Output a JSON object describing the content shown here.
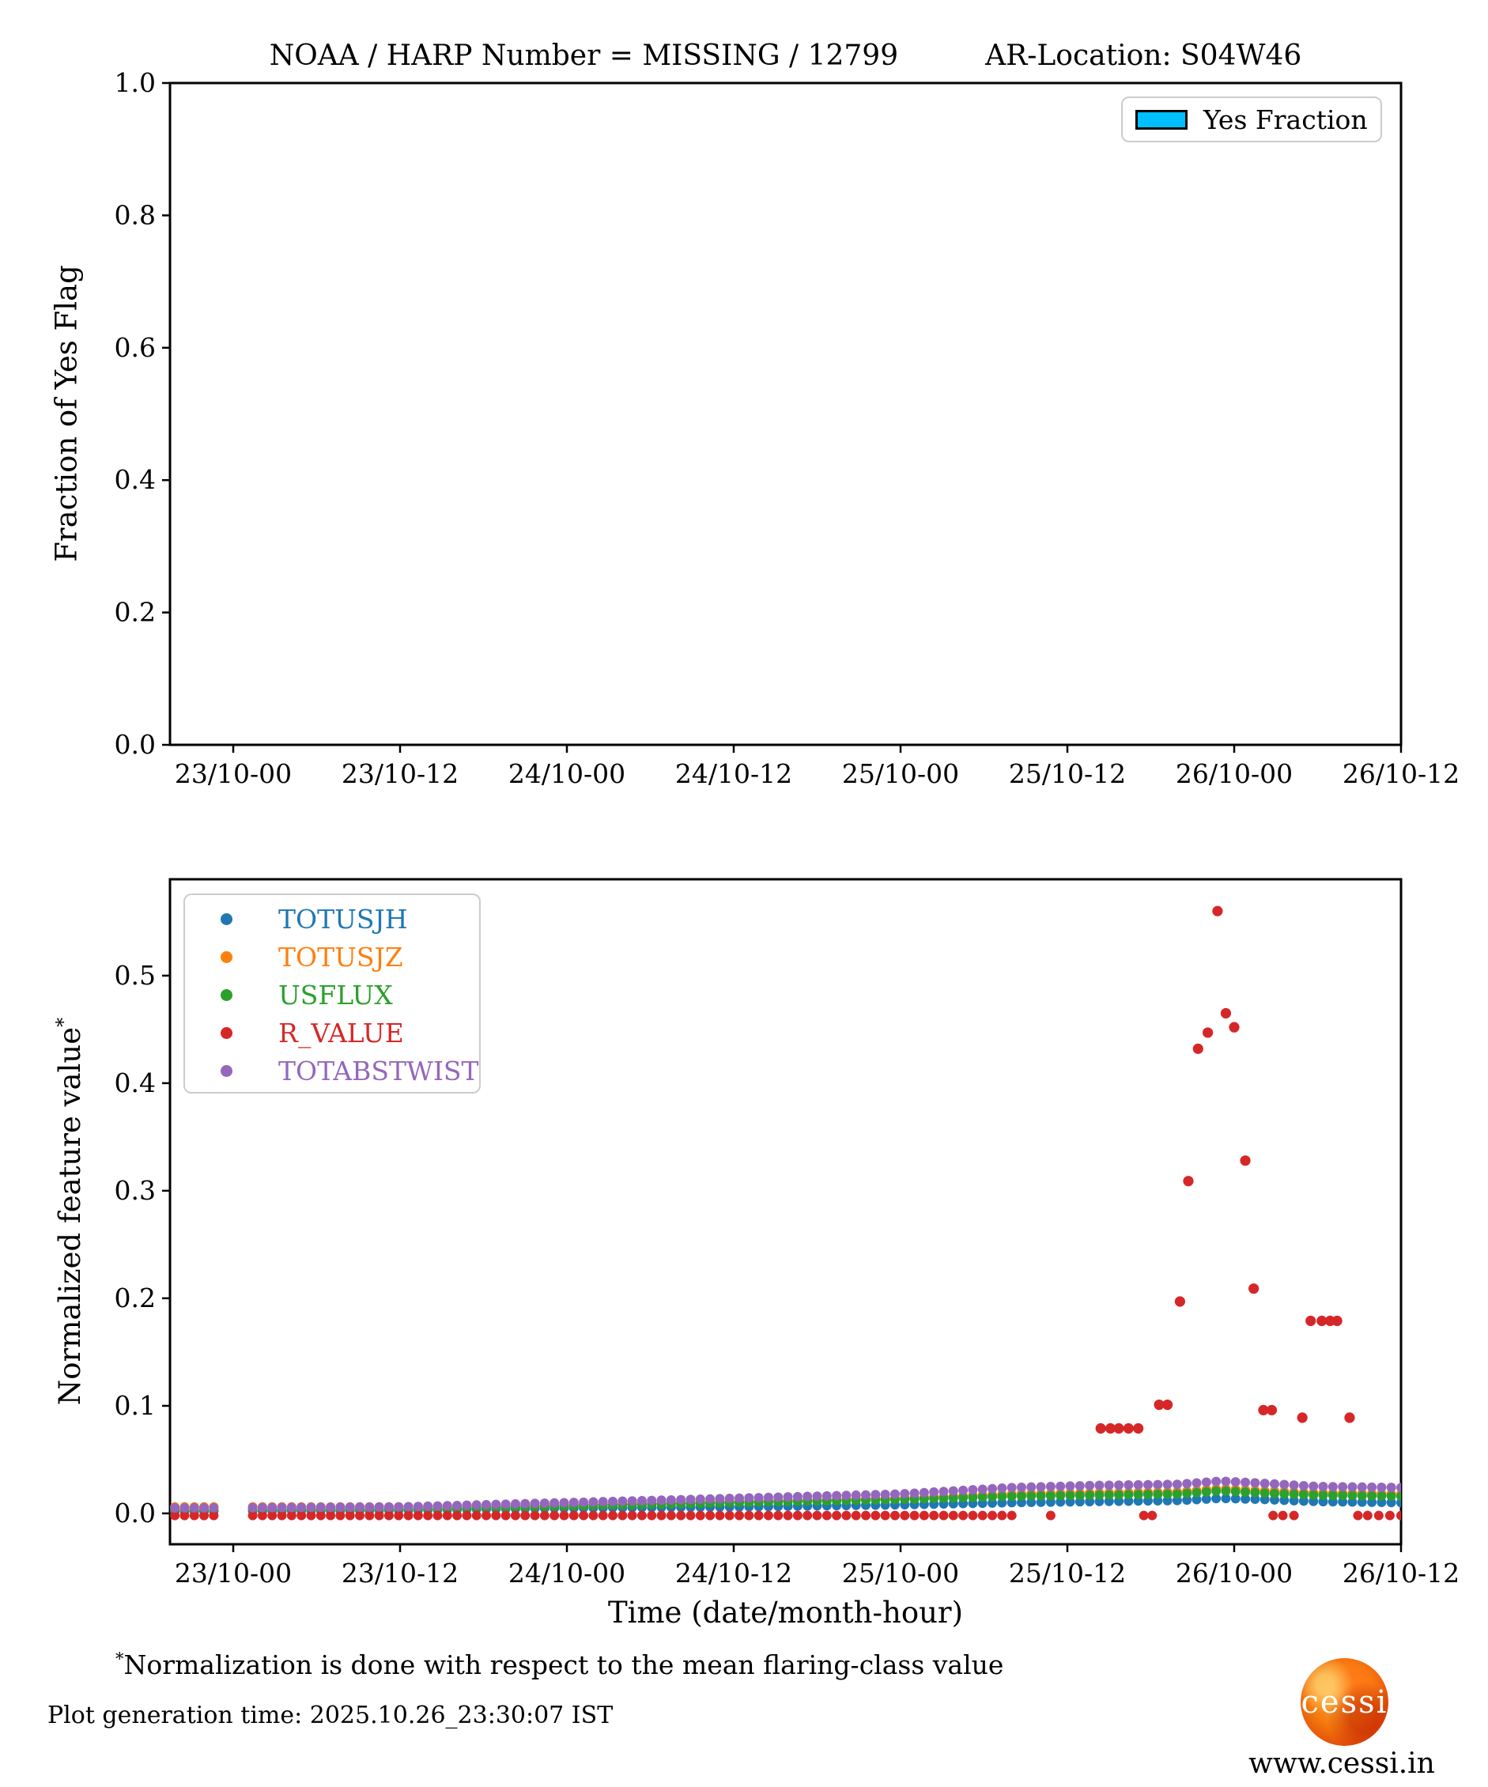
{
  "header": {
    "title_left": "NOAA / HARP Number = MISSING / 12799",
    "title_right": "AR-Location: S04W46"
  },
  "colors": {
    "yes_fraction": "#00BFFF",
    "TOTUSJH": "#1f77b4",
    "TOTUSJZ": "#ff7f0e",
    "USFLUX": "#2ca02c",
    "R_VALUE": "#d62728",
    "TOTABSTWIST": "#9467bd"
  },
  "chart_data": [
    {
      "panel": "top",
      "type": "bar",
      "ylabel": "Fraction of Yes Flag",
      "ylim": [
        0.0,
        1.0
      ],
      "yticks": [
        "0.0",
        "0.2",
        "0.4",
        "0.6",
        "0.8",
        "1.0"
      ],
      "xtick_labels": [
        "23/10-00",
        "23/10-12",
        "24/10-00",
        "24/10-12",
        "25/10-00",
        "25/10-12",
        "26/10-00",
        "26/10-12"
      ],
      "legend": [
        {
          "label": "Yes Fraction",
          "color": "#00BFFF"
        }
      ],
      "categories": [],
      "values": [],
      "grid": false,
      "note": "panel is empty - no yes-fraction bars plotted"
    },
    {
      "panel": "bottom",
      "type": "scatter",
      "xlabel": "Time (date/month-hour)",
      "ylabel": "Normalized feature value",
      "ylabel_sup": "*",
      "ylim": [
        -0.0287,
        0.5896
      ],
      "yticks": [
        "0.0",
        "0.1",
        "0.2",
        "0.3",
        "0.4",
        "0.5"
      ],
      "xtick_labels": [
        "23/10-00",
        "23/10-12",
        "24/10-00",
        "24/10-12",
        "25/10-00",
        "25/10-12",
        "26/10-00",
        "26/10-12"
      ],
      "xtick_hours": [
        0,
        12,
        24,
        36,
        48,
        60,
        72,
        84
      ],
      "xlim_hours": [
        -4.55,
        84.0
      ],
      "sample_times": {
        "start": -4.9,
        "end": 84,
        "step": 0.7,
        "gap_ranges": [
          [
            -0.8,
            1.35
          ]
        ]
      },
      "series": [
        {
          "name": "TOTUSJH",
          "color": "#1f77b4",
          "knots": [
            [
              -4,
              0.002
            ],
            [
              12,
              0.003
            ],
            [
              24,
              0.005
            ],
            [
              36,
              0.006
            ],
            [
              48,
              0.008
            ],
            [
              56,
              0.01
            ],
            [
              62,
              0.011
            ],
            [
              68,
              0.012
            ],
            [
              71,
              0.014
            ],
            [
              74,
              0.013
            ],
            [
              78,
              0.011
            ],
            [
              84,
              0.01
            ]
          ]
        },
        {
          "name": "TOTUSJZ",
          "color": "#ff7f0e",
          "knots": [
            [
              -4,
              0.006
            ],
            [
              12,
              0.006
            ],
            [
              24,
              0.008
            ],
            [
              36,
              0.011
            ],
            [
              48,
              0.014
            ],
            [
              56,
              0.018
            ],
            [
              62,
              0.019
            ],
            [
              68,
              0.02
            ],
            [
              71,
              0.023
            ],
            [
              74,
              0.021
            ],
            [
              78,
              0.019
            ],
            [
              84,
              0.018
            ]
          ]
        },
        {
          "name": "USFLUX",
          "color": "#2ca02c",
          "knots": [
            [
              -4,
              0.003
            ],
            [
              12,
              0.004
            ],
            [
              24,
              0.007
            ],
            [
              36,
              0.01
            ],
            [
              48,
              0.013
            ],
            [
              56,
              0.016
            ],
            [
              62,
              0.017
            ],
            [
              68,
              0.018
            ],
            [
              71,
              0.021
            ],
            [
              74,
              0.019
            ],
            [
              78,
              0.017
            ],
            [
              84,
              0.016
            ]
          ]
        },
        {
          "name": "R_VALUE",
          "color": "#d62728",
          "baseline_value": -0.002,
          "baseline_times": {
            "start": -4.9,
            "end": 56,
            "step": 0.7,
            "gap_ranges": [
              [
                -0.8,
                1.35
              ]
            ],
            "extra": [
              58.8,
              65.5,
              66.1,
              74.8,
              75.5,
              76.3,
              80.9,
              81.6,
              82.4,
              83.2,
              84
            ]
          },
          "flare_points": [
            [
              62.4,
              0.079
            ],
            [
              63.1,
              0.079
            ],
            [
              63.7,
              0.079
            ],
            [
              64.4,
              0.079
            ],
            [
              65.1,
              0.079
            ],
            [
              66.6,
              0.101
            ],
            [
              67.2,
              0.101
            ],
            [
              68.1,
              0.197
            ],
            [
              68.7,
              0.309
            ],
            [
              69.4,
              0.432
            ],
            [
              70.1,
              0.447
            ],
            [
              70.8,
              0.56
            ],
            [
              71.4,
              0.465
            ],
            [
              72.0,
              0.452
            ],
            [
              72.8,
              0.328
            ],
            [
              73.4,
              0.209
            ],
            [
              74.1,
              0.096
            ],
            [
              74.7,
              0.096
            ],
            [
              76.9,
              0.089
            ],
            [
              77.5,
              0.179
            ],
            [
              78.3,
              0.179
            ],
            [
              78.9,
              0.179
            ],
            [
              79.4,
              0.179
            ],
            [
              80.3,
              0.089
            ]
          ]
        },
        {
          "name": "TOTABSTWIST",
          "color": "#9467bd",
          "knots": [
            [
              -4,
              0.005
            ],
            [
              12,
              0.006
            ],
            [
              24,
              0.01
            ],
            [
              36,
              0.014
            ],
            [
              48,
              0.018
            ],
            [
              56,
              0.024
            ],
            [
              62,
              0.026
            ],
            [
              68,
              0.027
            ],
            [
              71,
              0.03
            ],
            [
              74,
              0.028
            ],
            [
              78,
              0.025
            ],
            [
              84,
              0.024
            ]
          ]
        }
      ],
      "legend": [
        {
          "label": "TOTUSJH",
          "color": "#1f77b4"
        },
        {
          "label": "TOTUSJZ",
          "color": "#ff7f0e"
        },
        {
          "label": "USFLUX",
          "color": "#2ca02c"
        },
        {
          "label": "R_VALUE",
          "color": "#d62728"
        },
        {
          "label": "TOTABSTWIST",
          "color": "#9467bd"
        }
      ]
    }
  ],
  "footer": {
    "footnote_sup": "*",
    "footnote": "Normalization is done with respect to the mean flaring-class value",
    "generation_time": "Plot generation time: 2025.10.26_23:30:07 IST",
    "logo_text": "cessi",
    "website": "www.cessi.in"
  }
}
